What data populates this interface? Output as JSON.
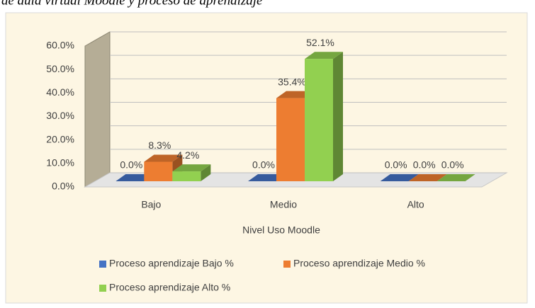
{
  "chart_data": {
    "type": "bar3d",
    "caption": "de aula virtual Moodle y proceso de aprendizaje",
    "x_label": "Nivel Uso Moodle",
    "categories": [
      "Bajo",
      "Medio",
      "Alto"
    ],
    "series": [
      {
        "name": "Proceso aprendizaje Bajo %",
        "color": "#4472c4",
        "values": [
          0,
          0,
          0
        ],
        "value_labels": [
          "0.0%",
          "0.0%",
          "0.0%"
        ]
      },
      {
        "name": "Proceso aprendizaje Medio %",
        "color": "#ed7d31",
        "values": [
          8.3,
          35.4,
          0
        ],
        "value_labels": [
          "8.3%",
          "35.4%",
          "0.0%"
        ]
      },
      {
        "name": "Proceso aprendizaje Alto %",
        "color": "#92d050",
        "values": [
          4.2,
          52.1,
          0
        ],
        "value_labels": [
          "4.2%",
          "52.1%",
          "0.0%"
        ]
      }
    ],
    "ylim": [
      0,
      60
    ],
    "yticks": [
      {
        "value": 0,
        "label": "0.0%"
      },
      {
        "value": 10,
        "label": "10.0%"
      },
      {
        "value": 20,
        "label": "20.0%"
      },
      {
        "value": 30,
        "label": "30.0%"
      },
      {
        "value": 40,
        "label": "40.0%"
      },
      {
        "value": 50,
        "label": "50.0%"
      },
      {
        "value": 60,
        "label": "60.0%"
      }
    ],
    "grid": true
  }
}
